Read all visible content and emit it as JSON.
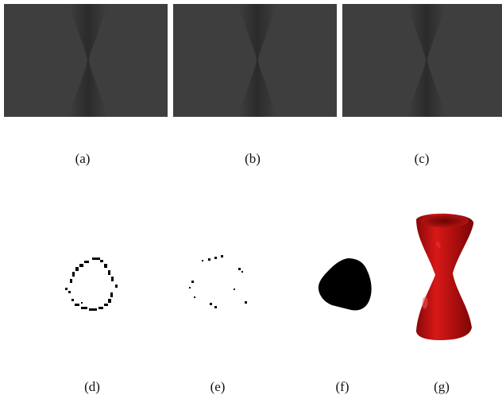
{
  "figure": {
    "top_row": {
      "captions": [
        "(a)",
        "(b)",
        "(c)"
      ]
    },
    "bottom_row": {
      "captions": [
        "(d)",
        "(e)",
        "(f)",
        "(g)"
      ]
    },
    "colors": {
      "panel_background": "#3e3e3e",
      "hourglass_shadow": "#2c2c2c",
      "mark": "#000000",
      "surface_red": "#c0100f"
    }
  }
}
